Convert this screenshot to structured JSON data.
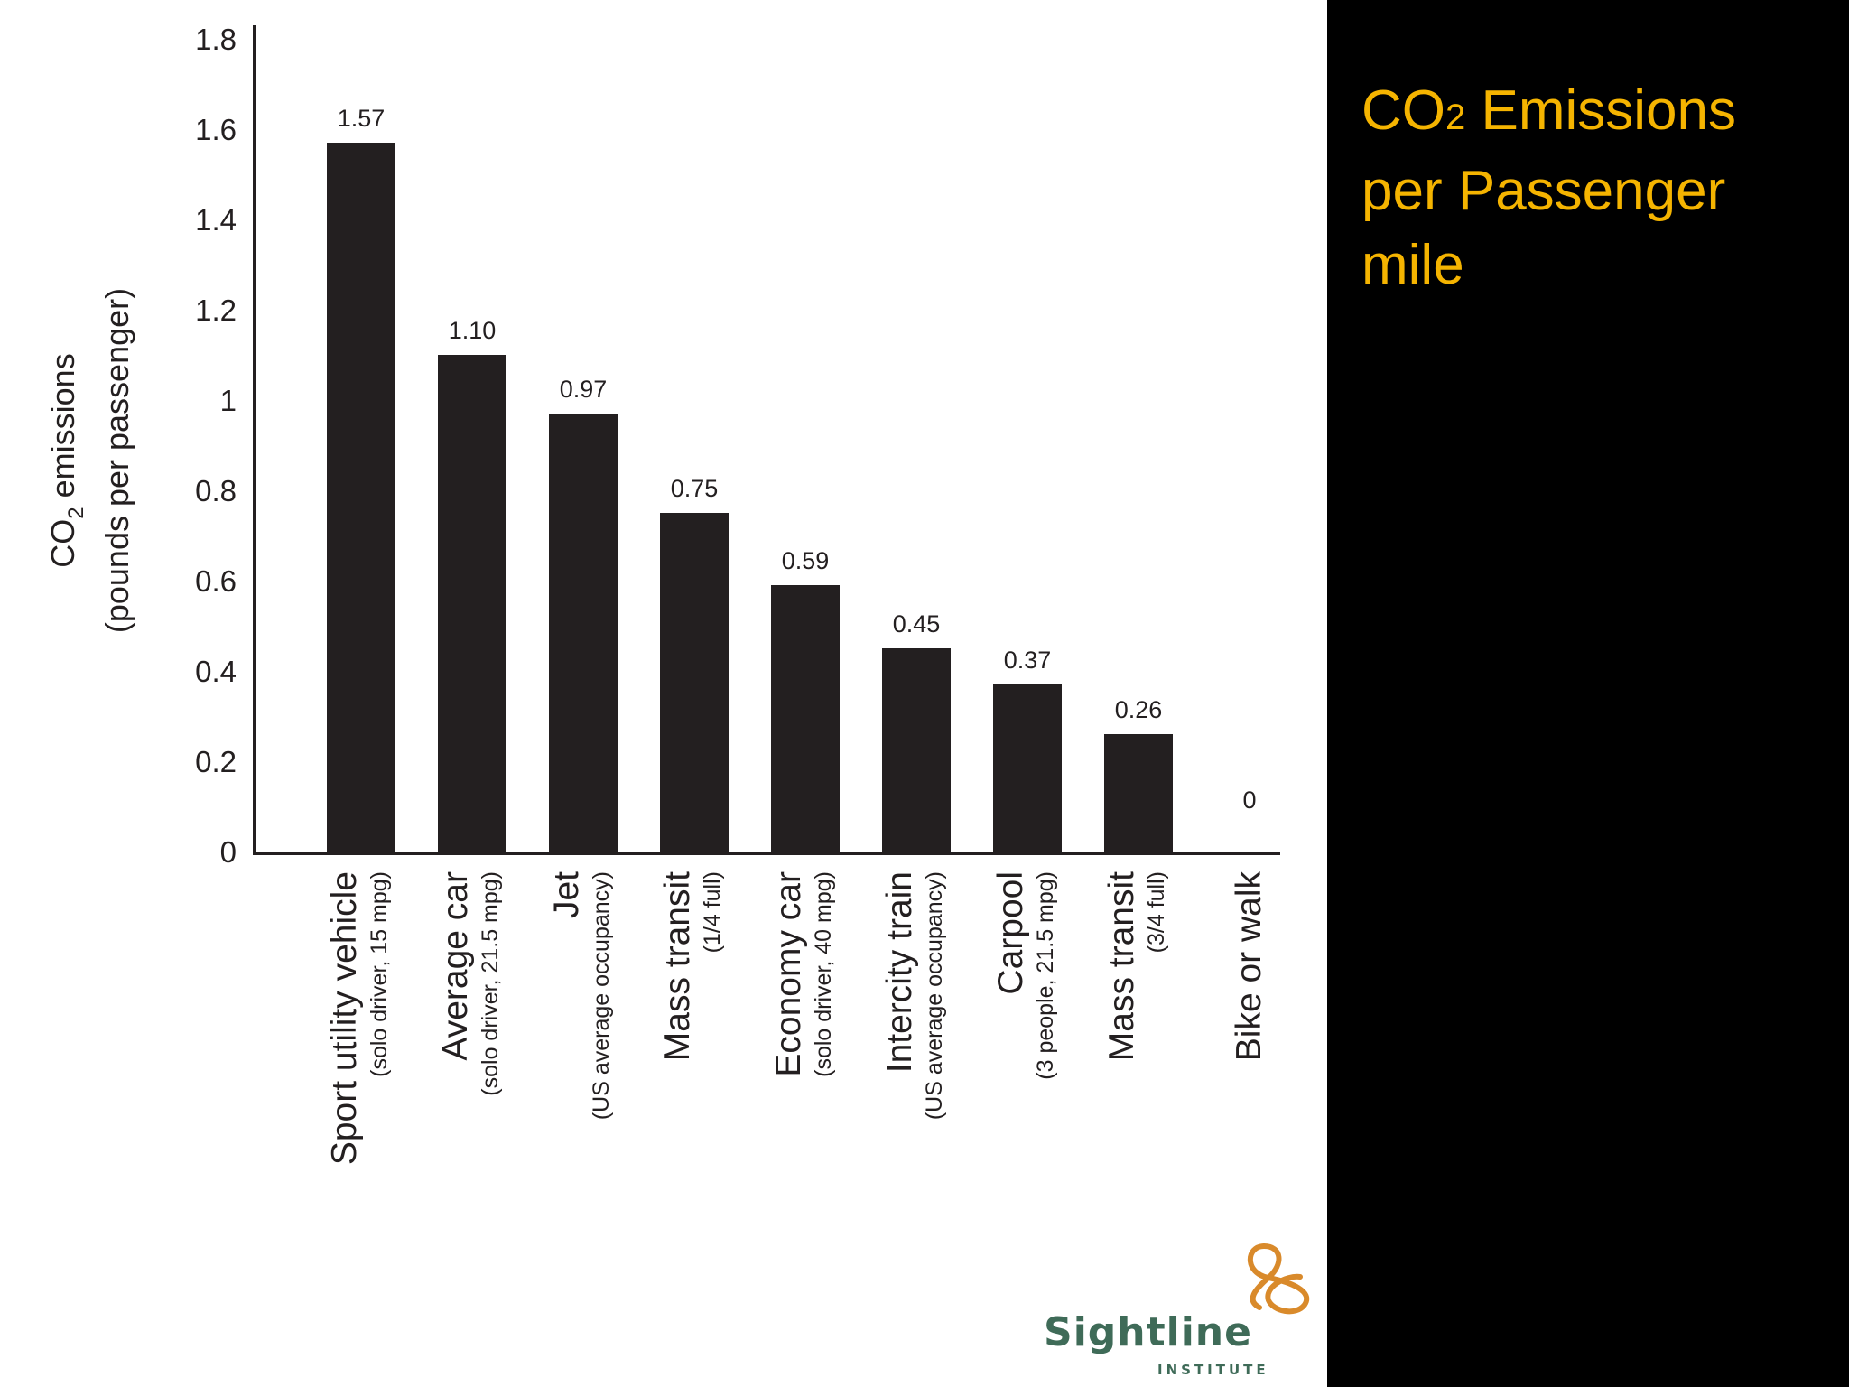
{
  "slide": {
    "title_part1": "CO",
    "title_sub": "2",
    "title_part2": " Emissions per Passenger mile",
    "title_color": "#f5b400",
    "background": "#000000"
  },
  "logo": {
    "name": "Sightline",
    "sub": "INSTITUTE",
    "icon": "sightline-knot-icon",
    "color": "#3f6b58",
    "accent": "#d98a2b"
  },
  "chart_data": {
    "type": "bar",
    "title": "",
    "ylabel": "CO2 emissions (pounds per passenger)",
    "ylabel_line1_main": "CO",
    "ylabel_line1_sub": "2",
    "ylabel_line1_rest": " emissions",
    "ylabel_line2": "(pounds per passenger)",
    "xlabel": "",
    "ylim": [
      0,
      1.8
    ],
    "yticks": [
      "0",
      "0.2",
      "0.4",
      "0.6",
      "0.8",
      "1",
      "1.2",
      "1.4",
      "1.6",
      "1.8"
    ],
    "categories": [
      {
        "label": "Sport utility vehicle",
        "sub": "(solo driver, 15 mpg)"
      },
      {
        "label": "Average car",
        "sub": "(solo driver, 21.5 mpg)"
      },
      {
        "label": "Jet",
        "sub": "(US average occupancy)"
      },
      {
        "label": "Mass transit",
        "sub": "(1/4 full)"
      },
      {
        "label": "Economy car",
        "sub": "(solo driver, 40 mpg)"
      },
      {
        "label": "Intercity train",
        "sub": "(US average occupancy)"
      },
      {
        "label": "Carpool",
        "sub": "(3 people, 21.5 mpg)"
      },
      {
        "label": "Mass transit",
        "sub": "(3/4 full)"
      },
      {
        "label": "Bike or walk",
        "sub": ""
      }
    ],
    "values": [
      1.57,
      1.1,
      0.97,
      0.75,
      0.59,
      0.45,
      0.37,
      0.26,
      0
    ],
    "value_labels": [
      "1.57",
      "1.10",
      "0.97",
      "0.75",
      "0.59",
      "0.45",
      "0.37",
      "0.26",
      "0"
    ],
    "bar_color": "#231f20",
    "grid": false,
    "legend": "none"
  }
}
